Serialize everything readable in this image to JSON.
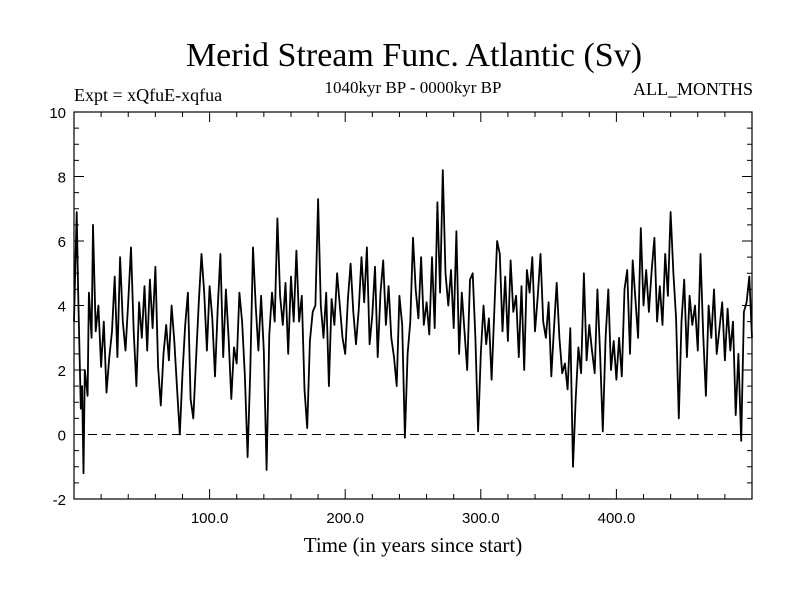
{
  "chart_data": {
    "type": "line",
    "title": "Merid Stream Func. Atlantic (Sv)",
    "subtitle_left": "Expt = xQfuE-xqfua",
    "subtitle_center": "1040kyr BP - 0000kyr BP",
    "subtitle_right": "ALL_MONTHS",
    "xlabel": "Time (in years since start)",
    "ylabel": "",
    "xlim": [
      0,
      500
    ],
    "ylim": [
      -2,
      10
    ],
    "x_ticks": [
      100,
      200,
      300,
      400
    ],
    "x_tick_labels": [
      "100.0",
      "200.0",
      "300.0",
      "400.0"
    ],
    "y_ticks": [
      -2,
      0,
      2,
      4,
      6,
      8,
      10
    ],
    "y_tick_labels": [
      "-2",
      "0",
      "2",
      "4",
      "6",
      "8",
      "10"
    ],
    "reference_line": {
      "y": 0,
      "style": "dashed"
    },
    "series": [
      {
        "name": "Merid Stream Func. Atlantic",
        "points": [
          [
            0,
            3.5
          ],
          [
            2,
            6.9
          ],
          [
            3,
            4.5
          ],
          [
            5,
            0.8
          ],
          [
            6,
            1.5
          ],
          [
            7,
            -1.2
          ],
          [
            8,
            2.0
          ],
          [
            10,
            1.2
          ],
          [
            11,
            4.4
          ],
          [
            13,
            3.0
          ],
          [
            14,
            6.5
          ],
          [
            16,
            3.2
          ],
          [
            18,
            4.0
          ],
          [
            20,
            2.1
          ],
          [
            22,
            3.5
          ],
          [
            24,
            1.3
          ],
          [
            26,
            2.4
          ],
          [
            28,
            3.2
          ],
          [
            30,
            4.9
          ],
          [
            32,
            2.4
          ],
          [
            34,
            5.5
          ],
          [
            36,
            3.5
          ],
          [
            38,
            2.6
          ],
          [
            40,
            4.1
          ],
          [
            42,
            5.8
          ],
          [
            44,
            3.2
          ],
          [
            46,
            1.5
          ],
          [
            48,
            4.1
          ],
          [
            50,
            3.0
          ],
          [
            52,
            4.6
          ],
          [
            54,
            2.6
          ],
          [
            56,
            4.8
          ],
          [
            58,
            3.3
          ],
          [
            60,
            5.2
          ],
          [
            62,
            2.1
          ],
          [
            64,
            0.9
          ],
          [
            66,
            2.5
          ],
          [
            68,
            3.4
          ],
          [
            70,
            2.3
          ],
          [
            72,
            4.0
          ],
          [
            74,
            2.9
          ],
          [
            76,
            1.4
          ],
          [
            78,
            0.0
          ],
          [
            80,
            1.9
          ],
          [
            82,
            3.4
          ],
          [
            84,
            4.4
          ],
          [
            86,
            1.1
          ],
          [
            88,
            0.5
          ],
          [
            90,
            2.3
          ],
          [
            92,
            4.1
          ],
          [
            94,
            5.6
          ],
          [
            96,
            4.4
          ],
          [
            98,
            2.6
          ],
          [
            100,
            4.6
          ],
          [
            102,
            3.6
          ],
          [
            104,
            1.8
          ],
          [
            106,
            3.9
          ],
          [
            108,
            5.6
          ],
          [
            110,
            2.4
          ],
          [
            112,
            4.5
          ],
          [
            114,
            3.0
          ],
          [
            116,
            1.1
          ],
          [
            118,
            2.7
          ],
          [
            120,
            2.2
          ],
          [
            122,
            4.4
          ],
          [
            124,
            3.5
          ],
          [
            126,
            1.8
          ],
          [
            128,
            -0.7
          ],
          [
            130,
            2.0
          ],
          [
            132,
            5.8
          ],
          [
            134,
            4.0
          ],
          [
            136,
            2.6
          ],
          [
            138,
            4.3
          ],
          [
            140,
            2.6
          ],
          [
            142,
            -1.1
          ],
          [
            144,
            3.1
          ],
          [
            146,
            4.4
          ],
          [
            148,
            3.5
          ],
          [
            150,
            6.7
          ],
          [
            152,
            4.3
          ],
          [
            154,
            3.4
          ],
          [
            156,
            4.7
          ],
          [
            158,
            2.5
          ],
          [
            160,
            4.9
          ],
          [
            162,
            3.5
          ],
          [
            164,
            5.7
          ],
          [
            166,
            3.5
          ],
          [
            168,
            4.3
          ],
          [
            170,
            1.4
          ],
          [
            172,
            0.2
          ],
          [
            174,
            2.9
          ],
          [
            176,
            3.8
          ],
          [
            178,
            4.0
          ],
          [
            180,
            7.3
          ],
          [
            182,
            4.0
          ],
          [
            184,
            3.0
          ],
          [
            186,
            4.4
          ],
          [
            188,
            1.5
          ],
          [
            190,
            4.2
          ],
          [
            192,
            3.4
          ],
          [
            194,
            5.0
          ],
          [
            196,
            4.0
          ],
          [
            198,
            3.0
          ],
          [
            200,
            2.5
          ],
          [
            202,
            4.2
          ],
          [
            204,
            5.3
          ],
          [
            206,
            3.8
          ],
          [
            208,
            2.8
          ],
          [
            210,
            3.9
          ],
          [
            212,
            5.5
          ],
          [
            214,
            4.1
          ],
          [
            216,
            5.8
          ],
          [
            218,
            2.8
          ],
          [
            220,
            3.7
          ],
          [
            222,
            5.2
          ],
          [
            224,
            2.4
          ],
          [
            226,
            4.4
          ],
          [
            228,
            5.4
          ],
          [
            230,
            3.4
          ],
          [
            232,
            4.6
          ],
          [
            234,
            3.0
          ],
          [
            236,
            2.4
          ],
          [
            238,
            1.5
          ],
          [
            240,
            4.3
          ],
          [
            242,
            3.4
          ],
          [
            244,
            -0.1
          ],
          [
            246,
            2.5
          ],
          [
            248,
            3.5
          ],
          [
            250,
            6.1
          ],
          [
            252,
            4.5
          ],
          [
            254,
            3.6
          ],
          [
            256,
            5.5
          ],
          [
            258,
            3.4
          ],
          [
            260,
            4.1
          ],
          [
            262,
            3.1
          ],
          [
            264,
            5.5
          ],
          [
            266,
            3.3
          ],
          [
            268,
            7.2
          ],
          [
            270,
            4.4
          ],
          [
            272,
            8.2
          ],
          [
            274,
            5.0
          ],
          [
            276,
            4.0
          ],
          [
            278,
            5.1
          ],
          [
            280,
            3.3
          ],
          [
            282,
            6.3
          ],
          [
            284,
            2.5
          ],
          [
            286,
            4.4
          ],
          [
            288,
            3.2
          ],
          [
            290,
            2.0
          ],
          [
            292,
            4.8
          ],
          [
            294,
            5.0
          ],
          [
            296,
            3.0
          ],
          [
            298,
            0.1
          ],
          [
            300,
            2.5
          ],
          [
            302,
            4.0
          ],
          [
            304,
            2.8
          ],
          [
            306,
            3.6
          ],
          [
            308,
            1.7
          ],
          [
            310,
            3.9
          ],
          [
            312,
            6.0
          ],
          [
            314,
            5.6
          ],
          [
            316,
            3.2
          ],
          [
            318,
            4.9
          ],
          [
            320,
            2.9
          ],
          [
            322,
            5.4
          ],
          [
            324,
            3.8
          ],
          [
            326,
            4.3
          ],
          [
            328,
            2.4
          ],
          [
            330,
            4.6
          ],
          [
            332,
            2.0
          ],
          [
            334,
            5.1
          ],
          [
            336,
            4.4
          ],
          [
            338,
            5.5
          ],
          [
            340,
            3.2
          ],
          [
            342,
            4.3
          ],
          [
            344,
            5.6
          ],
          [
            346,
            3.5
          ],
          [
            348,
            3.0
          ],
          [
            350,
            4.1
          ],
          [
            352,
            1.8
          ],
          [
            354,
            3.3
          ],
          [
            356,
            4.7
          ],
          [
            358,
            3.0
          ],
          [
            360,
            1.9
          ],
          [
            362,
            2.2
          ],
          [
            364,
            1.4
          ],
          [
            366,
            3.3
          ],
          [
            368,
            -1.0
          ],
          [
            370,
            1.1
          ],
          [
            372,
            2.7
          ],
          [
            374,
            1.9
          ],
          [
            376,
            5.0
          ],
          [
            378,
            2.3
          ],
          [
            380,
            3.4
          ],
          [
            382,
            2.6
          ],
          [
            384,
            1.9
          ],
          [
            386,
            4.5
          ],
          [
            388,
            2.5
          ],
          [
            390,
            0.1
          ],
          [
            392,
            3.0
          ],
          [
            394,
            4.5
          ],
          [
            396,
            2.0
          ],
          [
            398,
            2.9
          ],
          [
            400,
            1.7
          ],
          [
            402,
            3.0
          ],
          [
            404,
            1.8
          ],
          [
            406,
            4.5
          ],
          [
            408,
            5.1
          ],
          [
            410,
            2.5
          ],
          [
            412,
            5.4
          ],
          [
            414,
            4.2
          ],
          [
            416,
            3.0
          ],
          [
            418,
            6.4
          ],
          [
            420,
            4.0
          ],
          [
            422,
            5.1
          ],
          [
            424,
            3.8
          ],
          [
            426,
            5.1
          ],
          [
            428,
            6.1
          ],
          [
            430,
            3.5
          ],
          [
            432,
            4.6
          ],
          [
            434,
            3.4
          ],
          [
            436,
            5.6
          ],
          [
            438,
            4.3
          ],
          [
            440,
            6.9
          ],
          [
            442,
            5.0
          ],
          [
            444,
            3.6
          ],
          [
            446,
            0.5
          ],
          [
            448,
            3.5
          ],
          [
            450,
            4.8
          ],
          [
            452,
            2.4
          ],
          [
            454,
            4.3
          ],
          [
            456,
            3.4
          ],
          [
            458,
            4.0
          ],
          [
            460,
            2.6
          ],
          [
            462,
            5.6
          ],
          [
            464,
            3.1
          ],
          [
            466,
            1.2
          ],
          [
            468,
            4.0
          ],
          [
            470,
            3.0
          ],
          [
            472,
            4.5
          ],
          [
            474,
            2.5
          ],
          [
            476,
            3.3
          ],
          [
            478,
            4.1
          ],
          [
            480,
            2.3
          ],
          [
            482,
            3.9
          ],
          [
            484,
            2.6
          ],
          [
            486,
            3.5
          ],
          [
            488,
            0.6
          ],
          [
            490,
            2.5
          ],
          [
            492,
            -0.2
          ],
          [
            494,
            3.8
          ],
          [
            496,
            4.1
          ],
          [
            498,
            4.9
          ],
          [
            500,
            3.0
          ]
        ]
      }
    ]
  }
}
